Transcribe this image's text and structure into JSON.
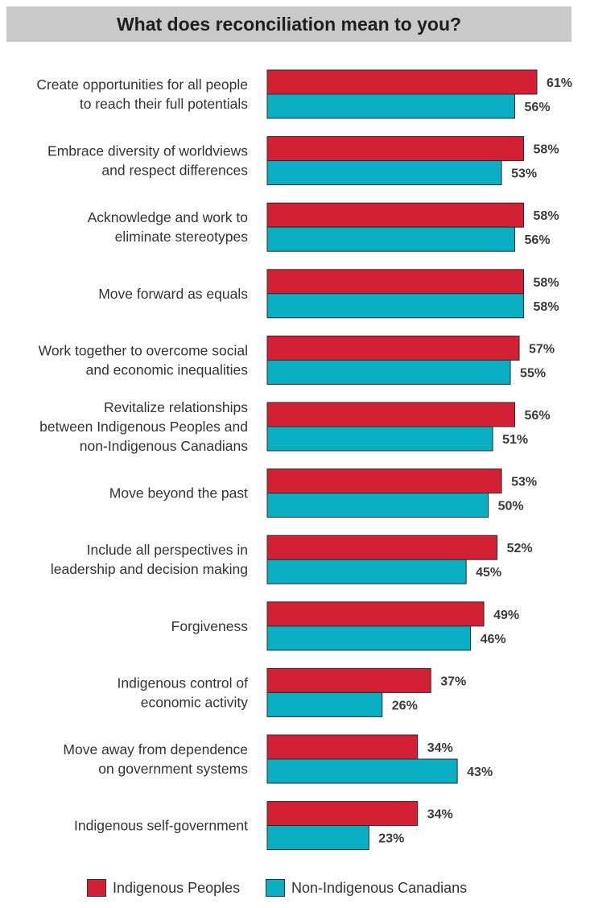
{
  "chart_data": {
    "type": "bar",
    "orientation": "horizontal",
    "title": "What does reconciliation mean to you?",
    "categories": [
      "Create opportunities for all people\nto reach their full potentials",
      "Embrace diversity of worldviews\nand respect differences",
      "Acknowledge and work to\neliminate stereotypes",
      "Move forward as equals",
      "Work together to overcome social\nand economic inequalities",
      "Revitalize relationships\nbetween Indigenous Peoples and\nnon-Indigenous Canadians",
      "Move beyond the past",
      "Include all perspectives in\nleadership and decision making",
      "Forgiveness",
      "Indigenous control of\neconomic activity",
      "Move away from dependence\non government systems",
      "Indigenous self-government"
    ],
    "series": [
      {
        "name": "Indigenous Peoples",
        "color": "#d42034",
        "values": [
          61,
          58,
          58,
          58,
          57,
          56,
          53,
          52,
          49,
          37,
          34,
          34
        ],
        "labels": [
          "61%",
          "58%",
          "58%",
          "58%",
          "57%",
          "56%",
          "53%",
          "52%",
          "49%",
          "37%",
          "34%",
          "34%"
        ]
      },
      {
        "name": "Non-Indigenous Canadians",
        "color": "#0bafc4",
        "values": [
          56,
          53,
          56,
          58,
          55,
          51,
          50,
          45,
          46,
          26,
          43,
          23
        ],
        "labels": [
          "56%",
          "53%",
          "56%",
          "58%",
          "55%",
          "51%",
          "50%",
          "45%",
          "46%",
          "26%",
          "43%",
          "23%"
        ]
      }
    ],
    "xlim": [
      0,
      61
    ],
    "grid": false,
    "legend_position": "bottom"
  },
  "legend": {
    "indigenous_label": "Indigenous Peoples",
    "non_indigenous_label": "Non-Indigenous Canadians"
  }
}
